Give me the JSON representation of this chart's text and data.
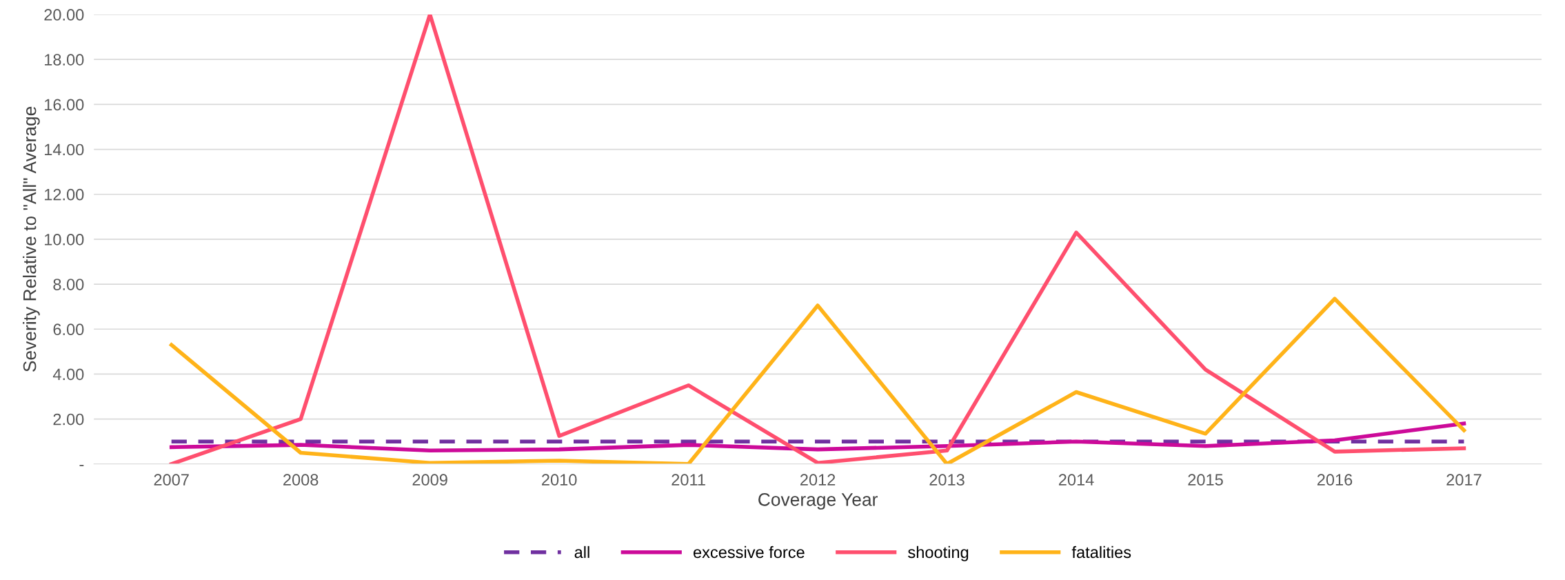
{
  "chart_data": {
    "type": "line",
    "xlabel": "Coverage Year",
    "ylabel": "Severity Relative to \"All\" Average",
    "categories": [
      "2007",
      "2008",
      "2009",
      "2010",
      "2011",
      "2012",
      "2013",
      "2014",
      "2015",
      "2016",
      "2017"
    ],
    "series": [
      {
        "name": "all",
        "color": "#7030a0",
        "line_style": "dashed",
        "values": [
          1,
          1,
          1,
          1,
          1,
          1,
          1,
          1,
          1,
          1,
          1
        ]
      },
      {
        "name": "excessive force",
        "color": "#cc0a99",
        "values": [
          0.75,
          0.85,
          0.6,
          0.65,
          0.85,
          0.65,
          0.8,
          1.0,
          0.8,
          1.05,
          1.8
        ]
      },
      {
        "name": "shooting",
        "color": "#ff4f6e",
        "values": [
          0.0,
          2.0,
          20.0,
          1.25,
          3.5,
          0.05,
          0.6,
          10.3,
          4.2,
          0.55,
          0.7
        ]
      },
      {
        "name": "fatalities",
        "color": "#ffb319",
        "values": [
          5.3,
          0.5,
          0.05,
          0.15,
          0.0,
          7.05,
          0.0,
          3.2,
          1.35,
          7.35,
          1.5
        ]
      }
    ],
    "ylim": [
      0,
      20
    ],
    "yticks": [
      {
        "value": 0,
        "label": "-"
      },
      {
        "value": 2,
        "label": "2.00"
      },
      {
        "value": 4,
        "label": "4.00"
      },
      {
        "value": 6,
        "label": "6.00"
      },
      {
        "value": 8,
        "label": "8.00"
      },
      {
        "value": 10,
        "label": "10.00"
      },
      {
        "value": 12,
        "label": "12.00"
      },
      {
        "value": 14,
        "label": "14.00"
      },
      {
        "value": 16,
        "label": "16.00"
      },
      {
        "value": 18,
        "label": "18.00"
      },
      {
        "value": 20,
        "label": "20.00"
      }
    ],
    "grid": "y",
    "legend": "bottom",
    "line_style": "solid"
  }
}
